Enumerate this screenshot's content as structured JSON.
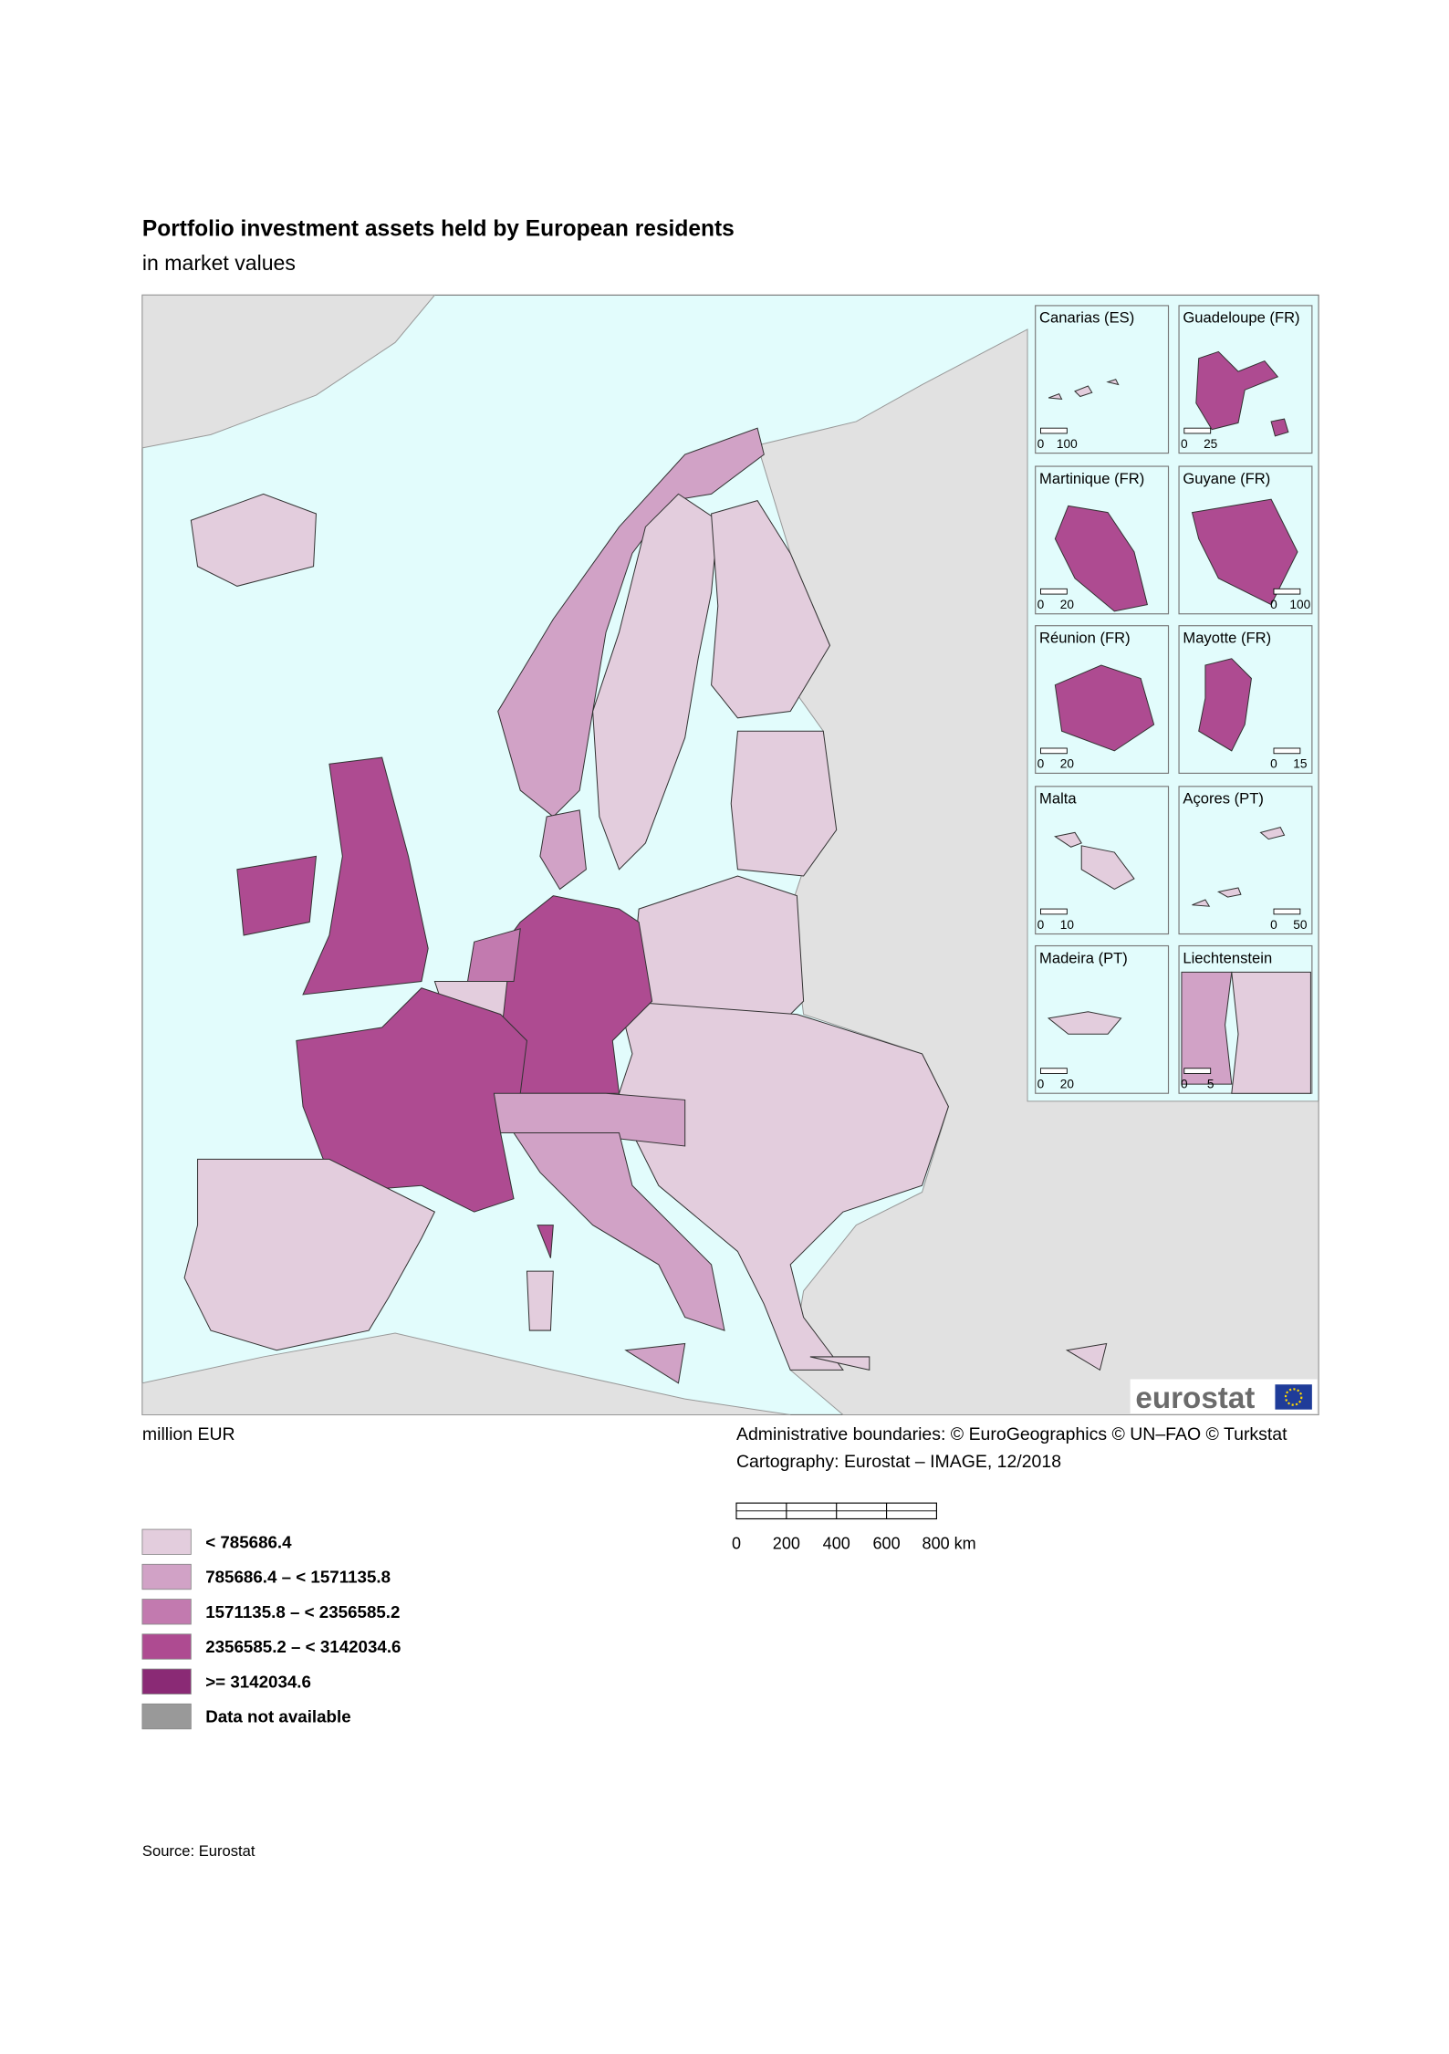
{
  "header": {
    "title": "Portfolio investment assets held by European residents",
    "subtitle": "in market values"
  },
  "map": {
    "unit_label": "million EUR",
    "credits": [
      "Administrative boundaries: © EuroGeographics © UN–FAO © Turkstat",
      "Cartography: Eurostat – IMAGE, 12/2018"
    ],
    "logo": "eurostat",
    "scale_bar": {
      "labels": [
        "0",
        "200",
        "400",
        "600",
        "800 km"
      ]
    },
    "insets": [
      {
        "label": "Canarias (ES)",
        "scale": [
          "0",
          "100"
        ]
      },
      {
        "label": "Guadeloupe (FR)",
        "scale": [
          "0",
          "25"
        ]
      },
      {
        "label": "Martinique (FR)",
        "scale": [
          "0",
          "20"
        ]
      },
      {
        "label": "Guyane (FR)",
        "scale": [
          "0",
          "100"
        ]
      },
      {
        "label": "Réunion (FR)",
        "scale": [
          "0",
          "20"
        ]
      },
      {
        "label": "Mayotte (FR)",
        "scale": [
          "0",
          "15"
        ]
      },
      {
        "label": "Malta",
        "scale": [
          "0",
          "10"
        ]
      },
      {
        "label": "Açores (PT)",
        "scale": [
          "0",
          "50"
        ]
      },
      {
        "label": "Madeira (PT)",
        "scale": [
          "0",
          "20"
        ]
      },
      {
        "label": "Liechtenstein",
        "scale": [
          "0",
          "5"
        ]
      }
    ]
  },
  "legend": {
    "items": [
      {
        "label": "< 785686.4",
        "color": "#e3cddd"
      },
      {
        "label": "785686.4 – < 1571135.8",
        "color": "#d1a2c6"
      },
      {
        "label": "1571135.8 – < 2356585.2",
        "color": "#c27aaf"
      },
      {
        "label": "2356585.2 – < 3142034.6",
        "color": "#ae4b91"
      },
      {
        "label": ">= 3142034.6",
        "color": "#8a2a75"
      },
      {
        "label": "Data not available",
        "color": "#999999"
      }
    ]
  },
  "footer": {
    "source": "Source: Eurostat"
  }
}
